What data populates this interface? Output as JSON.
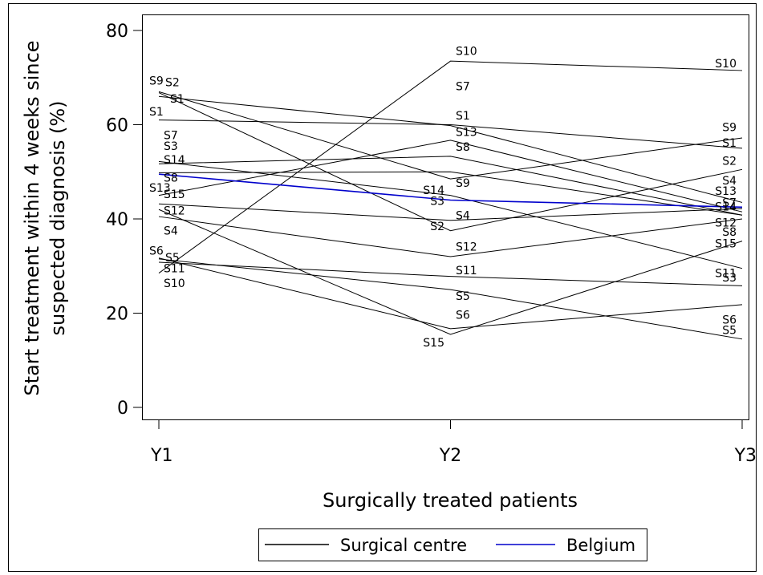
{
  "chart_data": {
    "type": "line",
    "categories": [
      "Y1",
      "Y2",
      "Y3"
    ],
    "ylim": [
      0,
      80
    ],
    "yticks": [
      0,
      20,
      40,
      60,
      80
    ],
    "ylabel_lines": [
      "Start treatment within 4 weeks since",
      "suspected diagnosis (%)"
    ],
    "xlabel": "Surgically treated patients",
    "grid": false,
    "legend": {
      "placement": "bottom-center",
      "entries": [
        {
          "label": "Surgical centre",
          "color": "#000000"
        },
        {
          "label": "Belgium",
          "color": "#0000cc"
        }
      ]
    },
    "series": [
      {
        "name": "S1",
        "values": [
          61.0,
          60.0,
          55.0
        ],
        "color": "#000000"
      },
      {
        "name": "S2",
        "values": [
          66.8,
          37.5,
          50.5
        ],
        "color": "#000000"
      },
      {
        "name": "S3",
        "values": [
          52.2,
          45.0,
          29.5
        ],
        "color": "#000000"
      },
      {
        "name": "S4",
        "values": [
          43.2,
          39.7,
          42.2
        ],
        "color": "#000000"
      },
      {
        "name": "S5",
        "values": [
          31.5,
          25.0,
          14.5
        ],
        "color": "#000000"
      },
      {
        "name": "S6",
        "values": [
          31.7,
          16.7,
          21.8
        ],
        "color": "#000000"
      },
      {
        "name": "S7",
        "values": [
          51.7,
          53.3,
          40.8
        ],
        "color": "#000000"
      },
      {
        "name": "S8",
        "values": [
          45.0,
          56.7,
          41.5
        ],
        "color": "#000000"
      },
      {
        "name": "S9",
        "values": [
          67.0,
          48.5,
          57.2
        ],
        "color": "#000000"
      },
      {
        "name": "S10",
        "values": [
          28.5,
          73.5,
          71.5
        ],
        "color": "#000000"
      },
      {
        "name": "S11",
        "values": [
          30.8,
          27.8,
          25.8
        ],
        "color": "#000000"
      },
      {
        "name": "S12",
        "values": [
          40.5,
          32.0,
          40.0
        ],
        "color": "#000000"
      },
      {
        "name": "S13",
        "values": [
          49.8,
          50.0,
          40.8
        ],
        "color": "#000000"
      },
      {
        "name": "S14",
        "values": [
          66.0,
          59.8,
          43.5
        ],
        "color": "#000000"
      },
      {
        "name": "S15",
        "values": [
          42.0,
          15.5,
          35.3
        ],
        "color": "#000000"
      },
      {
        "name": "Belgium",
        "values": [
          49.5,
          44.0,
          42.5
        ],
        "color": "#0000cc"
      }
    ],
    "annotations": [
      {
        "text": "S9",
        "at": "Y1",
        "y": 69.4
      },
      {
        "text": "S2",
        "at": "Y1",
        "y": 69.0
      },
      {
        "text": "S1",
        "at": "Y1",
        "y": 65.5
      },
      {
        "text": "S1",
        "at": "Y1",
        "y": 62.8
      },
      {
        "text": "S7",
        "at": "Y1",
        "y": 57.8
      },
      {
        "text": "S3",
        "at": "Y1",
        "y": 55.5
      },
      {
        "text": "S14",
        "at": "Y1",
        "y": 52.6
      },
      {
        "text": "S8",
        "at": "Y1",
        "y": 48.8
      },
      {
        "text": "S13",
        "at": "Y1",
        "y": 46.6
      },
      {
        "text": "S15",
        "at": "Y1",
        "y": 45.3
      },
      {
        "text": "S12",
        "at": "Y1",
        "y": 41.8
      },
      {
        "text": "S4",
        "at": "Y1",
        "y": 37.5
      },
      {
        "text": "S6",
        "at": "Y1",
        "y": 33.3
      },
      {
        "text": "S5",
        "at": "Y1",
        "y": 31.8
      },
      {
        "text": "S11",
        "at": "Y1",
        "y": 29.5
      },
      {
        "text": "S10",
        "at": "Y1",
        "y": 26.4
      },
      {
        "text": "S10",
        "at": "Y2",
        "y": 75.7
      },
      {
        "text": "S7",
        "at": "Y2",
        "y": 68.2
      },
      {
        "text": "S1",
        "at": "Y2",
        "y": 62.0
      },
      {
        "text": "S13",
        "at": "Y2",
        "y": 58.5
      },
      {
        "text": "S8",
        "at": "Y2",
        "y": 55.3
      },
      {
        "text": "S9",
        "at": "Y2",
        "y": 47.7
      },
      {
        "text": "S14",
        "at": "Y2",
        "y": 46.1
      },
      {
        "text": "S3",
        "at": "Y2",
        "y": 43.8
      },
      {
        "text": "S4",
        "at": "Y2",
        "y": 40.8
      },
      {
        "text": "S2",
        "at": "Y2",
        "y": 38.5
      },
      {
        "text": "S12",
        "at": "Y2",
        "y": 34.1
      },
      {
        "text": "S11",
        "at": "Y2",
        "y": 29.1
      },
      {
        "text": "S5",
        "at": "Y2",
        "y": 23.7
      },
      {
        "text": "S6",
        "at": "Y2",
        "y": 19.7
      },
      {
        "text": "S15",
        "at": "Y2",
        "y": 13.8
      },
      {
        "text": "S10",
        "at": "Y3",
        "y": 73.0
      },
      {
        "text": "S9",
        "at": "Y3",
        "y": 59.5
      },
      {
        "text": "S1",
        "at": "Y3",
        "y": 56.2
      },
      {
        "text": "S2",
        "at": "Y3",
        "y": 52.3
      },
      {
        "text": "S4",
        "at": "Y3",
        "y": 48.2
      },
      {
        "text": "S13",
        "at": "Y3",
        "y": 46.0
      },
      {
        "text": "S7",
        "at": "Y3",
        "y": 43.5
      },
      {
        "text": "S14",
        "at": "Y3",
        "y": 42.6
      },
      {
        "text": "S12",
        "at": "Y3",
        "y": 39.2
      },
      {
        "text": "S8",
        "at": "Y3",
        "y": 37.3
      },
      {
        "text": "S15",
        "at": "Y3",
        "y": 34.8
      },
      {
        "text": "S11",
        "at": "Y3",
        "y": 28.5
      },
      {
        "text": "S3",
        "at": "Y3",
        "y": 27.6
      },
      {
        "text": "S6",
        "at": "Y3",
        "y": 18.6
      },
      {
        "text": "S5",
        "at": "Y3",
        "y": 16.4
      }
    ]
  }
}
